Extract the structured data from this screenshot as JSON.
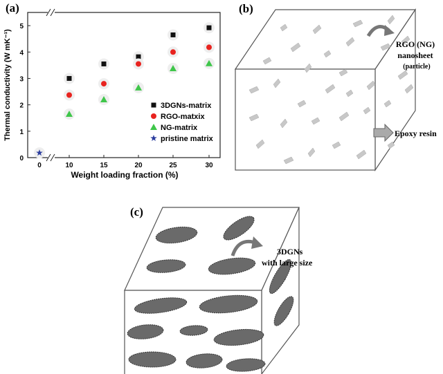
{
  "chart_data": {
    "type": "scatter",
    "panel_label": "(a)",
    "xlabel": "Weight loading fraction (%)",
    "ylabel": "Thermal conductivity (W mK⁻¹)",
    "categories": [
      "0",
      "10",
      "15",
      "20",
      "25",
      "30"
    ],
    "ylim": [
      0,
      5.5
    ],
    "yticks": [
      0,
      1,
      2,
      3,
      4,
      5
    ],
    "legend": "lower right",
    "series": [
      {
        "name": "3DGNs-matrix",
        "color": "#111111",
        "marker": "square",
        "values": [
          null,
          3.0,
          3.55,
          3.82,
          4.65,
          4.92
        ]
      },
      {
        "name": "RGO-matxix",
        "color": "#e8231f",
        "marker": "circle",
        "values": [
          null,
          2.37,
          2.8,
          3.55,
          4.0,
          4.18
        ]
      },
      {
        "name": "NG-matrix",
        "color": "#3fc64a",
        "marker": "triangle",
        "values": [
          null,
          1.65,
          2.2,
          2.65,
          3.38,
          3.57
        ]
      },
      {
        "name": "pristine matrix",
        "color": "#2b3d9e",
        "marker": "star",
        "values": [
          0.18,
          null,
          null,
          null,
          null,
          null
        ]
      }
    ]
  },
  "diagram_b": {
    "label": "(b)",
    "particle_label": [
      "RGO (NG)",
      "nanosheet",
      "(particle)"
    ],
    "matrix_label": "Epoxy resin"
  },
  "diagram_c": {
    "label": "(c)",
    "particle_label": [
      "3DGNs",
      "with large size"
    ]
  }
}
